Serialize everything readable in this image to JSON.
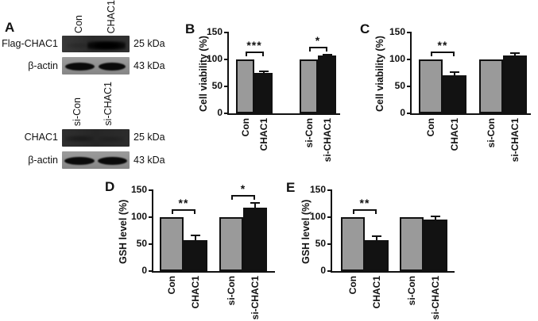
{
  "colors": {
    "background": "#ffffff",
    "bar_gray": "#9a9a9a",
    "bar_black": "#121212",
    "axis": "#111111",
    "blot_dark": "#2b2b2b",
    "blot_light": "#8e8e8e"
  },
  "panel_a": {
    "label": "A",
    "groups": [
      {
        "lanes": [
          "Con",
          "CHAC1"
        ],
        "rows": [
          {
            "protein": "Flag-CHAC1",
            "size": "25 kDa",
            "band_pattern": "strong-right"
          },
          {
            "protein": "β-actin",
            "size": "43 kDa",
            "band_pattern": "both"
          }
        ]
      },
      {
        "lanes": [
          "si-Con",
          "si-CHAC1"
        ],
        "rows": [
          {
            "protein": "CHAC1",
            "size": "25 kDa",
            "band_pattern": "faint-left"
          },
          {
            "protein": "β-actin",
            "size": "43 kDa",
            "band_pattern": "both"
          }
        ]
      }
    ]
  },
  "chart_data": [
    {
      "id": "B",
      "panel_label": "B",
      "type": "bar",
      "title": "",
      "xlabel": "",
      "ylabel": "Cell viability (%)",
      "ylim": [
        0,
        150
      ],
      "yticks": [
        0,
        50,
        100,
        150
      ],
      "grid": false,
      "legend": "none",
      "categories": [
        "Con",
        "CHAC1",
        "si-Con",
        "si-CHAC1"
      ],
      "values": [
        100,
        75,
        100,
        107
      ],
      "errors": [
        0,
        3,
        0,
        2
      ],
      "bar_colors": [
        "gray",
        "black",
        "gray",
        "black"
      ],
      "significance": [
        {
          "pair": [
            0,
            1
          ],
          "label": "***"
        },
        {
          "pair": [
            2,
            3
          ],
          "label": "*"
        }
      ]
    },
    {
      "id": "C",
      "panel_label": "C",
      "type": "bar",
      "title": "",
      "xlabel": "",
      "ylabel": "Cell viability (%)",
      "ylim": [
        0,
        150
      ],
      "yticks": [
        0,
        50,
        100,
        150
      ],
      "grid": false,
      "legend": "none",
      "categories": [
        "Con",
        "CHAC1",
        "si-Con",
        "si-CHAC1"
      ],
      "values": [
        100,
        70,
        100,
        107
      ],
      "errors": [
        0,
        6,
        0,
        5
      ],
      "bar_colors": [
        "gray",
        "black",
        "gray",
        "black"
      ],
      "significance": [
        {
          "pair": [
            0,
            1
          ],
          "label": "**"
        }
      ]
    },
    {
      "id": "D",
      "panel_label": "D",
      "type": "bar",
      "title": "",
      "xlabel": "",
      "ylabel": "GSH level (%)",
      "ylim": [
        0,
        150
      ],
      "yticks": [
        0,
        50,
        100,
        150
      ],
      "grid": false,
      "legend": "none",
      "categories": [
        "Con",
        "CHAC1",
        "si-Con",
        "si-CHAC1"
      ],
      "values": [
        100,
        58,
        100,
        118
      ],
      "errors": [
        0,
        8,
        0,
        8
      ],
      "bar_colors": [
        "gray",
        "black",
        "gray",
        "black"
      ],
      "significance": [
        {
          "pair": [
            0,
            1
          ],
          "label": "**"
        },
        {
          "pair": [
            2,
            3
          ],
          "label": "*"
        }
      ]
    },
    {
      "id": "E",
      "panel_label": "E",
      "type": "bar",
      "title": "",
      "xlabel": "",
      "ylabel": "GSH level (%)",
      "ylim": [
        0,
        150
      ],
      "yticks": [
        0,
        50,
        100,
        150
      ],
      "grid": false,
      "legend": "none",
      "categories": [
        "Con",
        "CHAC1",
        "si-Con",
        "si-CHAC1"
      ],
      "values": [
        100,
        57,
        100,
        96
      ],
      "errors": [
        0,
        8,
        0,
        5
      ],
      "bar_colors": [
        "gray",
        "black",
        "gray",
        "black"
      ],
      "significance": [
        {
          "pair": [
            0,
            1
          ],
          "label": "**"
        }
      ]
    }
  ]
}
